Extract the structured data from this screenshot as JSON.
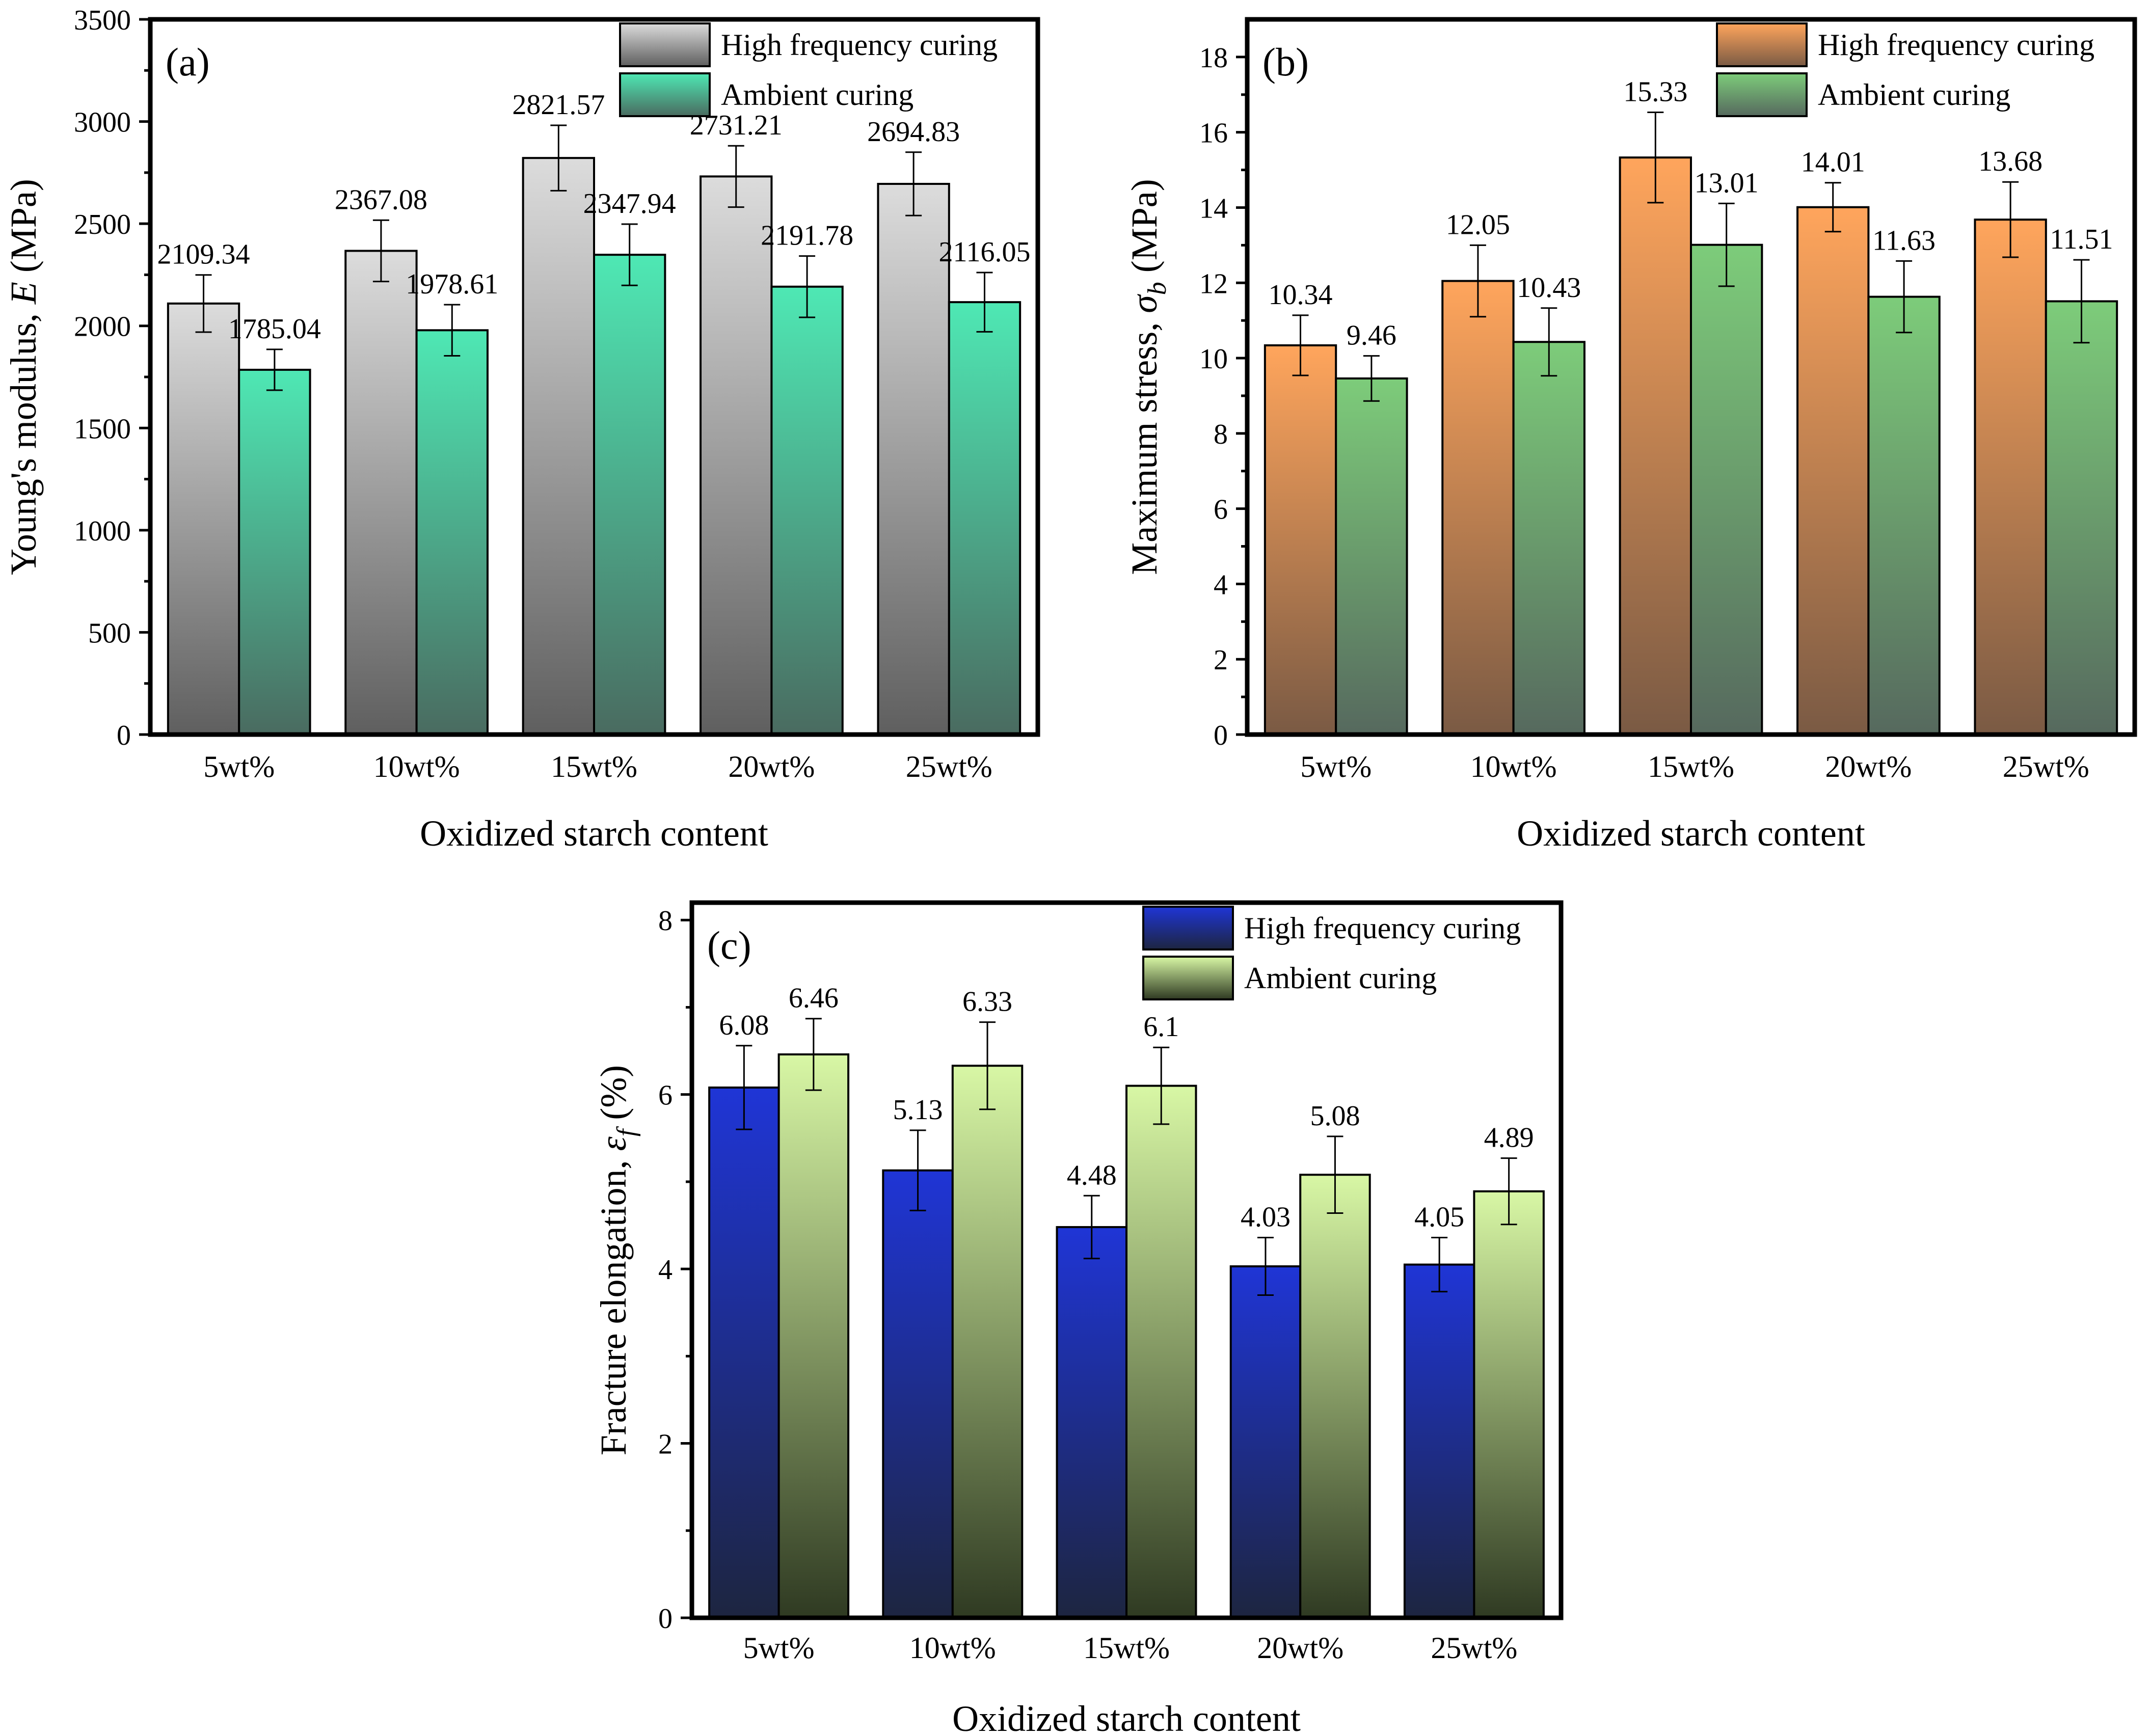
{
  "figure_title": "",
  "legend_series": [
    "High frequency curing",
    "Ambient curing"
  ],
  "chart_data": [
    {
      "id": "a",
      "type": "bar",
      "panel_label": "(a)",
      "categories": [
        "5wt%",
        "10wt%",
        "15wt%",
        "20wt%",
        "25wt%"
      ],
      "xlabel": "Oxidized starch content",
      "ylabel_main": "Young's modulus, ",
      "ylabel_symbol": "E",
      "ylabel_sub": "",
      "ylabel_unit": " (MPa)",
      "ylim": [
        0,
        3500
      ],
      "yticks": [
        0,
        500,
        1000,
        1500,
        2000,
        2500,
        3000,
        3500
      ],
      "minor_step": 250,
      "legend_position": "top-right",
      "series": [
        {
          "name": "High frequency curing",
          "values": [
            2109.34,
            2367.08,
            2821.57,
            2731.21,
            2694.83
          ],
          "errors": [
            140,
            150,
            160,
            150,
            155
          ],
          "labels": [
            "2109.34",
            "2367.08",
            "2821.57",
            "2731.21",
            "2694.83"
          ],
          "color_top": "#dcdcdc",
          "color_bottom": "#5f5f5f"
        },
        {
          "name": "Ambient curing",
          "values": [
            1785.04,
            1978.61,
            2347.94,
            2191.78,
            2116.05
          ],
          "errors": [
            100,
            125,
            150,
            150,
            145
          ],
          "labels": [
            "1785.04",
            "1978.61",
            "2347.94",
            "2191.78",
            "2116.05"
          ],
          "color_top": "#4ee8b4",
          "color_bottom": "#4a6b60"
        }
      ]
    },
    {
      "id": "b",
      "type": "bar",
      "panel_label": "(b)",
      "categories": [
        "5wt%",
        "10wt%",
        "15wt%",
        "20wt%",
        "25wt%"
      ],
      "xlabel": "Oxidized starch content",
      "ylabel_main": "Maximum stress, ",
      "ylabel_symbol": "σ",
      "ylabel_sub": "b",
      "ylabel_unit": " (MPa)",
      "ylim": [
        0,
        19
      ],
      "yticks": [
        0,
        2,
        4,
        6,
        8,
        10,
        12,
        14,
        16,
        18
      ],
      "minor_step": 1,
      "legend_position": "top-right",
      "series": [
        {
          "name": "High frequency curing",
          "values": [
            10.34,
            12.05,
            15.33,
            14.01,
            13.68
          ],
          "errors": [
            0.8,
            0.95,
            1.2,
            0.65,
            1.0
          ],
          "labels": [
            "10.34",
            "12.05",
            "15.33",
            "14.01",
            "13.68"
          ],
          "color_top": "#ffa55c",
          "color_bottom": "#7a5a44"
        },
        {
          "name": "Ambient curing",
          "values": [
            9.46,
            10.43,
            13.01,
            11.63,
            11.51
          ],
          "errors": [
            0.6,
            0.9,
            1.1,
            0.95,
            1.1
          ],
          "labels": [
            "9.46",
            "10.43",
            "13.01",
            "11.63",
            "11.51"
          ],
          "color_top": "#7dcc7a",
          "color_bottom": "#56695e"
        }
      ]
    },
    {
      "id": "c",
      "type": "bar",
      "panel_label": "(c)",
      "categories": [
        "5wt%",
        "10wt%",
        "15wt%",
        "20wt%",
        "25wt%"
      ],
      "xlabel": "Oxidized starch content",
      "ylabel_main": "Fracture elongation, ",
      "ylabel_symbol": "ε",
      "ylabel_sub": "f",
      "ylabel_unit": " (%)",
      "ylim": [
        0,
        8.2
      ],
      "yticks": [
        0,
        2,
        4,
        6,
        8
      ],
      "minor_step": 1,
      "legend_position": "top-right",
      "series": [
        {
          "name": "High frequency curing",
          "values": [
            6.08,
            5.13,
            4.48,
            4.03,
            4.05
          ],
          "errors": [
            0.48,
            0.46,
            0.36,
            0.33,
            0.31
          ],
          "labels": [
            "6.08",
            "5.13",
            "4.48",
            "4.03",
            "4.05"
          ],
          "color_top": "#1f35d6",
          "color_bottom": "#1d2540"
        },
        {
          "name": "Ambient curing",
          "values": [
            6.46,
            6.33,
            6.1,
            5.08,
            4.89
          ],
          "errors": [
            0.41,
            0.5,
            0.44,
            0.44,
            0.38
          ],
          "labels": [
            "6.46",
            "6.33",
            "6.1",
            "5.08",
            "4.89"
          ],
          "color_top": "#d8f7a5",
          "color_bottom": "#2f3a22"
        }
      ]
    }
  ]
}
